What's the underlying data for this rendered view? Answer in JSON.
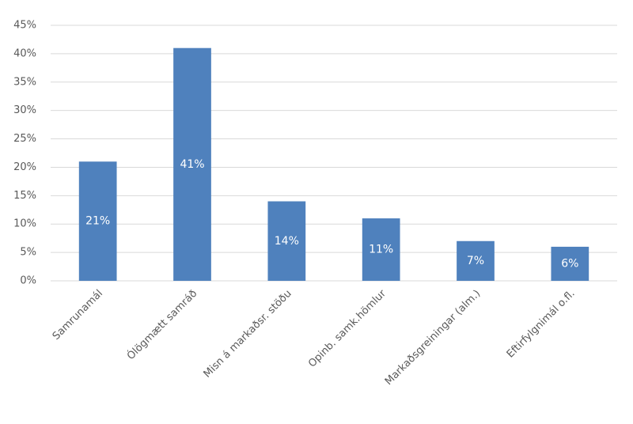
{
  "chart_data": {
    "type": "bar",
    "categories": [
      "Samrunamál",
      "Ólögmætt samráð",
      "Misn á markaðsr. stöðu",
      "Opinb. samk.hömlur",
      "Markaðsgreiningar (alm.)",
      "Eftirfylgnimál o.fl."
    ],
    "values": [
      21,
      41,
      14,
      11,
      7,
      6
    ],
    "value_labels": [
      "21%",
      "41%",
      "14%",
      "11%",
      "7%",
      "6%"
    ],
    "color": "#4f81bd",
    "ylim": [
      0,
      45
    ],
    "yticks": [
      {
        "value": 0,
        "label": "0%"
      },
      {
        "value": 5,
        "label": "5%"
      },
      {
        "value": 10,
        "label": "10%"
      },
      {
        "value": 15,
        "label": "15%"
      },
      {
        "value": 20,
        "label": "20%"
      },
      {
        "value": 25,
        "label": "25%"
      },
      {
        "value": 30,
        "label": "30%"
      },
      {
        "value": 35,
        "label": "35%"
      },
      {
        "value": 40,
        "label": "40%"
      },
      {
        "value": 45,
        "label": "45%"
      }
    ],
    "grid": true
  }
}
